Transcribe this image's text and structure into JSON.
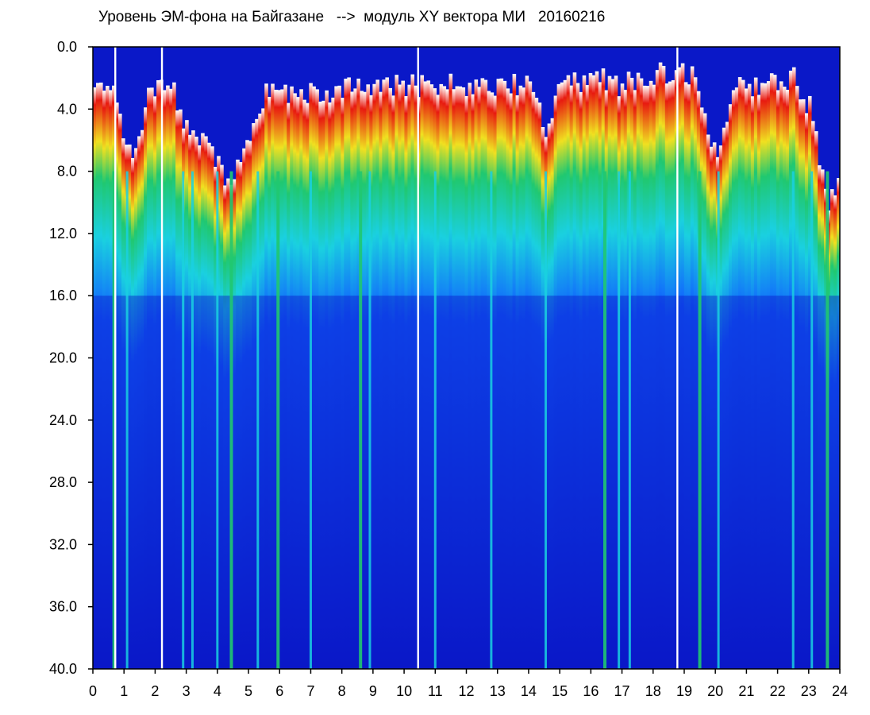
{
  "title": "Уровень ЭМ-фона на Байгазане   -->  модуль XY вектора МИ   20160216",
  "chart_data": {
    "type": "heatmap",
    "title": "Уровень ЭМ-фона на Байгазане   -->  модуль XY вектора МИ   20160216",
    "xlabel": "",
    "ylabel": "",
    "x_range": [
      0,
      24
    ],
    "y_range": [
      0.0,
      40.0
    ],
    "y_inverted": true,
    "x_ticks": [
      "0",
      "1",
      "2",
      "3",
      "4",
      "5",
      "6",
      "7",
      "8",
      "9",
      "10",
      "11",
      "12",
      "13",
      "14",
      "15",
      "16",
      "17",
      "18",
      "19",
      "20",
      "21",
      "22",
      "23",
      "24"
    ],
    "y_ticks": [
      "0.0",
      "4.0",
      "8.0",
      "12.0",
      "16.0",
      "20.0",
      "24.0",
      "28.0",
      "32.0",
      "36.0",
      "40.0"
    ],
    "colormap": [
      "#ffffff",
      "#e81a10",
      "#f0e020",
      "#20c870",
      "#1ad0e0",
      "#1060ff",
      "#0a18c8"
    ],
    "gap_hours": [
      0.72,
      2.22,
      10.45,
      18.78
    ],
    "green_stripe_hours": [
      0.68,
      4.45,
      5.95,
      8.6,
      16.45,
      19.5,
      23.6
    ],
    "cyan_stripe_hours": [
      1.1,
      2.9,
      3.2,
      4.0,
      5.3,
      7.0,
      8.9,
      11.0,
      12.8,
      14.55,
      16.9,
      17.25,
      20.1,
      22.5,
      23.1
    ],
    "band_top_by_hour": [
      {
        "x": 0.0,
        "y": 2.0
      },
      {
        "x": 0.6,
        "y": 2.5
      },
      {
        "x": 1.0,
        "y": 7.0
      },
      {
        "x": 1.5,
        "y": 6.0
      },
      {
        "x": 1.8,
        "y": 2.5
      },
      {
        "x": 2.5,
        "y": 2.5
      },
      {
        "x": 3.0,
        "y": 5.5
      },
      {
        "x": 3.5,
        "y": 6.0
      },
      {
        "x": 4.0,
        "y": 7.5
      },
      {
        "x": 4.3,
        "y": 8.5
      },
      {
        "x": 5.0,
        "y": 6.0
      },
      {
        "x": 5.5,
        "y": 3.0
      },
      {
        "x": 7.0,
        "y": 3.0
      },
      {
        "x": 8.5,
        "y": 2.5
      },
      {
        "x": 11.0,
        "y": 2.5
      },
      {
        "x": 13.0,
        "y": 2.5
      },
      {
        "x": 14.0,
        "y": 2.5
      },
      {
        "x": 14.5,
        "y": 5.5
      },
      {
        "x": 15.0,
        "y": 2.5
      },
      {
        "x": 16.0,
        "y": 2.0
      },
      {
        "x": 17.0,
        "y": 2.5
      },
      {
        "x": 17.5,
        "y": 2.0
      },
      {
        "x": 18.5,
        "y": 1.5
      },
      {
        "x": 19.3,
        "y": 2.0
      },
      {
        "x": 20.0,
        "y": 7.0
      },
      {
        "x": 20.5,
        "y": 2.5
      },
      {
        "x": 21.5,
        "y": 2.5
      },
      {
        "x": 22.5,
        "y": 2.0
      },
      {
        "x": 23.0,
        "y": 4.0
      },
      {
        "x": 23.5,
        "y": 10.0
      },
      {
        "x": 24.0,
        "y": 9.0
      }
    ],
    "grid": false,
    "legend": "none"
  }
}
